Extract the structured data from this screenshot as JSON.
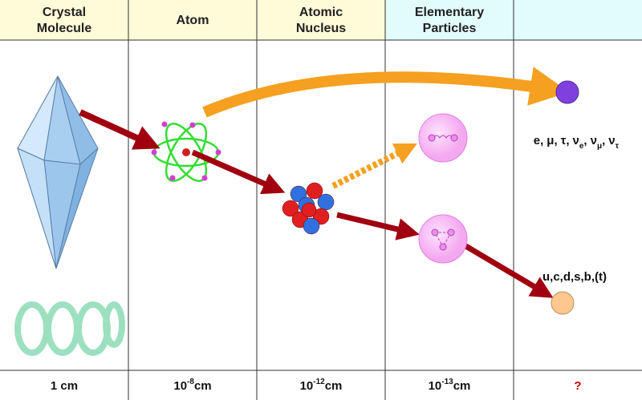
{
  "columns": [
    {
      "header": [
        "Crystal",
        "Molecule"
      ],
      "scale": {
        "text": "1 cm"
      }
    },
    {
      "header": [
        "Atom"
      ],
      "scale": {
        "base": "10",
        "exp": "-8",
        "unit": "cm"
      }
    },
    {
      "header": [
        "Atomic",
        "Nucleus"
      ],
      "scale": {
        "base": "10",
        "exp": "-12",
        "unit": "cm"
      }
    },
    {
      "header": [
        "Elementary",
        "Particles"
      ],
      "scale": {
        "base": "10",
        "exp": "-13",
        "unit": "cm"
      }
    },
    {
      "scale": {
        "text": "?"
      }
    }
  ],
  "leptons": {
    "separator": ",",
    "items": [
      {
        "symbol": "e"
      },
      {
        "symbol": "μ"
      },
      {
        "symbol": "τ"
      },
      {
        "symbol": "ν",
        "sub": "e"
      },
      {
        "symbol": "ν",
        "sub": "μ"
      },
      {
        "symbol": "ν",
        "sub": "τ"
      }
    ]
  },
  "quarks": "u,c,d,s,b,(t)"
}
